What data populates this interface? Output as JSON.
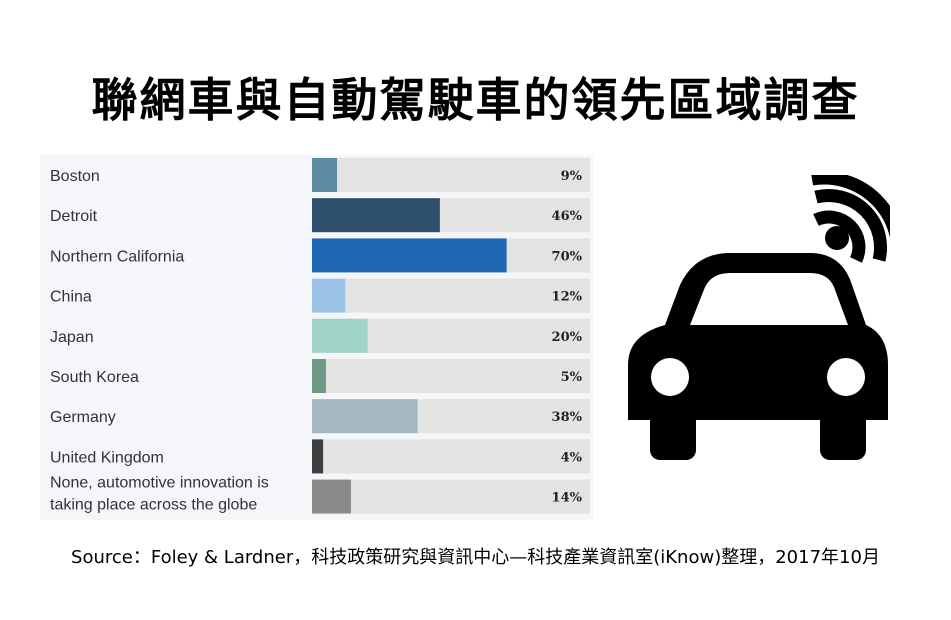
{
  "title": "聯網車與自動駕駛車的領先區域調查",
  "source": "Source：Foley & Lardner，科技政策研究與資訊中心—科技產業資訊室(iKnow)整理，2017年10月",
  "illustration": {
    "icon": "connected-car-icon",
    "color": "#000000"
  },
  "chart_data": {
    "type": "bar",
    "orientation": "horizontal",
    "categories": [
      "Boston",
      "Detroit",
      "Northern California",
      "China",
      "Japan",
      "South Korea",
      "Germany",
      "United Kingdom",
      [
        "None, automotive innovation is",
        "taking place across the globe"
      ]
    ],
    "values": [
      9,
      46,
      70,
      12,
      20,
      5,
      38,
      4,
      14
    ],
    "value_labels": [
      "9%",
      "46%",
      "70%",
      "12%",
      "20%",
      "5%",
      "38%",
      "4%",
      "14%"
    ],
    "xlim": [
      0,
      100
    ],
    "colors": [
      "#5b8aa3",
      "#2e4f6e",
      "#1e67b4",
      "#9dc3e8",
      "#9fd3c7",
      "#6c9a84",
      "#a5b7c0",
      "#3e3e3e",
      "#8a8a8a"
    ],
    "track_color": "#e3e3e3",
    "grid": false,
    "legend": "none"
  }
}
